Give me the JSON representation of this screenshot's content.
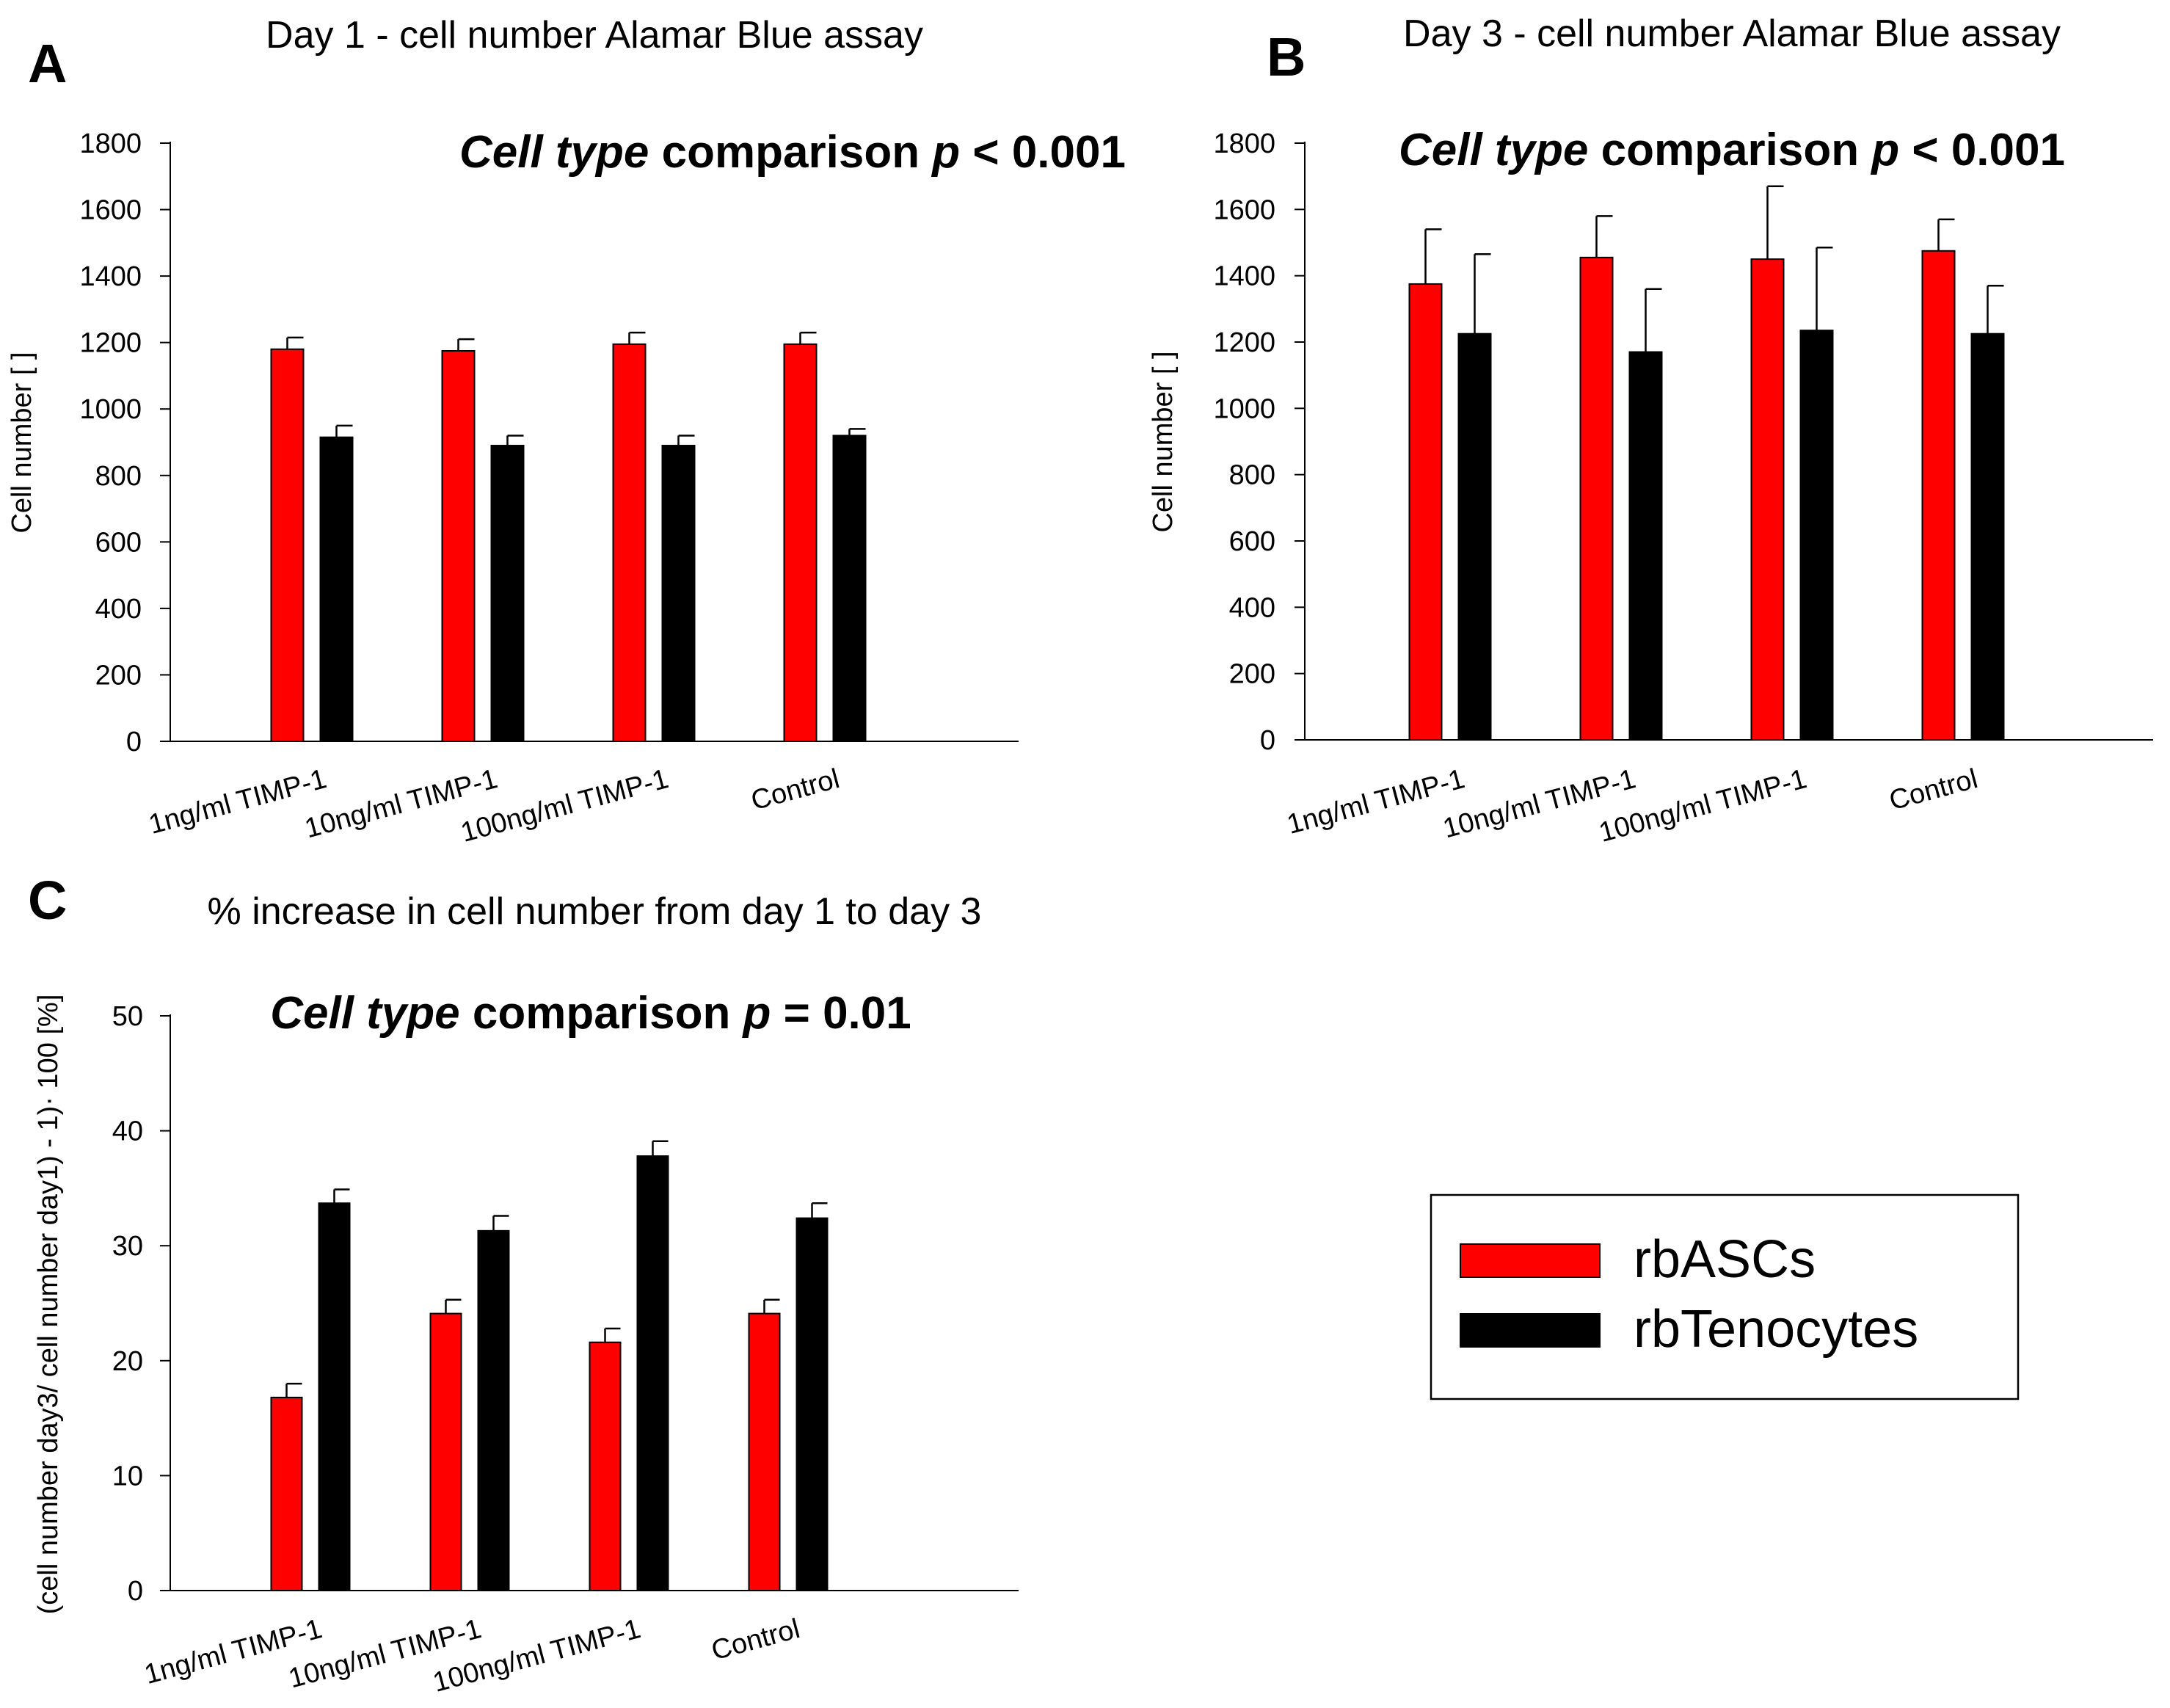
{
  "figure": {
    "colors": {
      "rbASCs": "#ff0000",
      "rbTenocytes": "#000000"
    },
    "legend": {
      "entries": [
        "rbASCs",
        "rbTenocytes"
      ]
    }
  },
  "chart_data": [
    {
      "panel": "A",
      "type": "bar",
      "title": "Day 1 - cell number Alamar Blue assay",
      "annotation": {
        "italic": "Cell type",
        "bold": " comparison ",
        "p_italic": "p",
        "p_rest": " < 0.001"
      },
      "xlabel": "",
      "ylabel": "Cell number [ ]",
      "ylim": [
        0,
        1800
      ],
      "yticks": [
        0,
        200,
        400,
        600,
        800,
        1000,
        1200,
        1400,
        1600,
        1800
      ],
      "categories": [
        "1ng/ml TIMP-1",
        "10ng/ml TIMP-1",
        "100ng/ml TIMP-1",
        "Control"
      ],
      "series": [
        {
          "name": "rbASCs",
          "values": [
            1180,
            1175,
            1195,
            1195
          ],
          "errors": [
            35,
            35,
            35,
            35
          ]
        },
        {
          "name": "rbTenocytes",
          "values": [
            915,
            890,
            890,
            920
          ],
          "errors": [
            35,
            30,
            30,
            20
          ]
        }
      ]
    },
    {
      "panel": "B",
      "type": "bar",
      "title": "Day 3 - cell number Alamar Blue assay",
      "annotation": {
        "italic": "Cell type",
        "bold": " comparison ",
        "p_italic": "p",
        "p_rest": " < 0.001"
      },
      "xlabel": "",
      "ylabel": "Cell number [ ]",
      "ylim": [
        0,
        1800
      ],
      "yticks": [
        0,
        200,
        400,
        600,
        800,
        1000,
        1200,
        1400,
        1600,
        1800
      ],
      "categories": [
        "1ng/ml TIMP-1",
        "10ng/ml TIMP-1",
        "100ng/ml TIMP-1",
        "Control"
      ],
      "series": [
        {
          "name": "rbASCs",
          "values": [
            1375,
            1455,
            1450,
            1475
          ],
          "errors": [
            165,
            125,
            220,
            95
          ]
        },
        {
          "name": "rbTenocytes",
          "values": [
            1225,
            1170,
            1235,
            1225
          ],
          "errors": [
            240,
            190,
            250,
            145
          ]
        }
      ]
    },
    {
      "panel": "C",
      "type": "bar",
      "title": "% increase in cell number from day 1 to day 3",
      "annotation": {
        "italic": "Cell type",
        "bold": " comparison ",
        "p_italic": "p",
        "p_rest": " = 0.01"
      },
      "xlabel": "",
      "ylabel": "(cell number day3/ cell number day1) - 1)· 100 [%]",
      "ylim": [
        0,
        50
      ],
      "yticks": [
        0,
        10,
        20,
        30,
        40,
        50
      ],
      "categories": [
        "1ng/ml TIMP-1",
        "10ng/ml TIMP-1",
        "100ng/ml TIMP-1",
        "Control"
      ],
      "series": [
        {
          "name": "rbASCs",
          "values": [
            16.8,
            24.1,
            21.6,
            24.1
          ],
          "errors": [
            1.2,
            1.2,
            1.2,
            1.2
          ]
        },
        {
          "name": "rbTenocytes",
          "values": [
            33.7,
            31.3,
            37.8,
            32.4
          ],
          "errors": [
            1.2,
            1.3,
            1.3,
            1.3
          ]
        }
      ]
    }
  ]
}
